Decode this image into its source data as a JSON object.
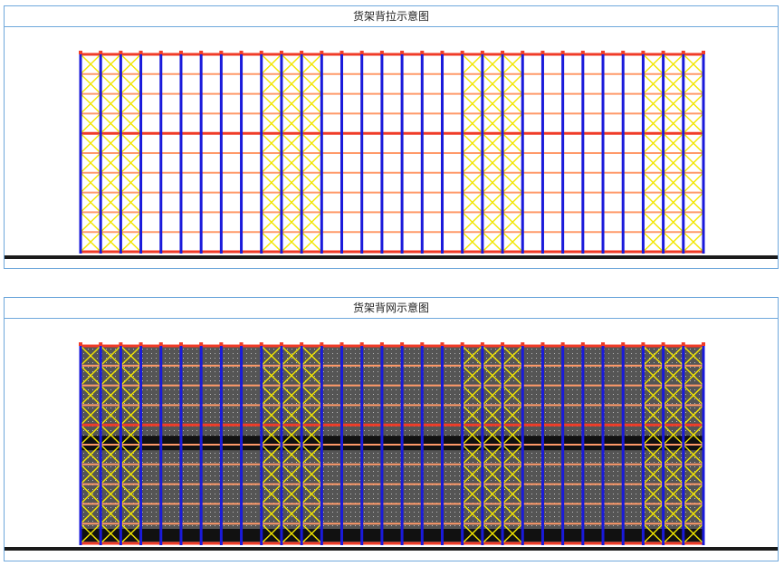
{
  "panels": [
    {
      "title": "货架背拉示意图",
      "variant": "brace"
    },
    {
      "title": "货架背网示意图",
      "variant": "mesh"
    }
  ],
  "colors": {
    "upright": "#1a1adb",
    "beam": "#f03c28",
    "beam_light": "#ff9a6a",
    "brace": "#f2e600",
    "mesh": "#555555",
    "mesh_dot": "#bbbbbb",
    "dark_band": "#111111",
    "floor": "#1a1a1a",
    "border": "#6fa8dc"
  },
  "rack": {
    "uprights": 32,
    "levels": 10,
    "braced_bays": [
      [
        0,
        3
      ],
      [
        9,
        12
      ],
      [
        19,
        22
      ],
      [
        28,
        31
      ]
    ]
  }
}
